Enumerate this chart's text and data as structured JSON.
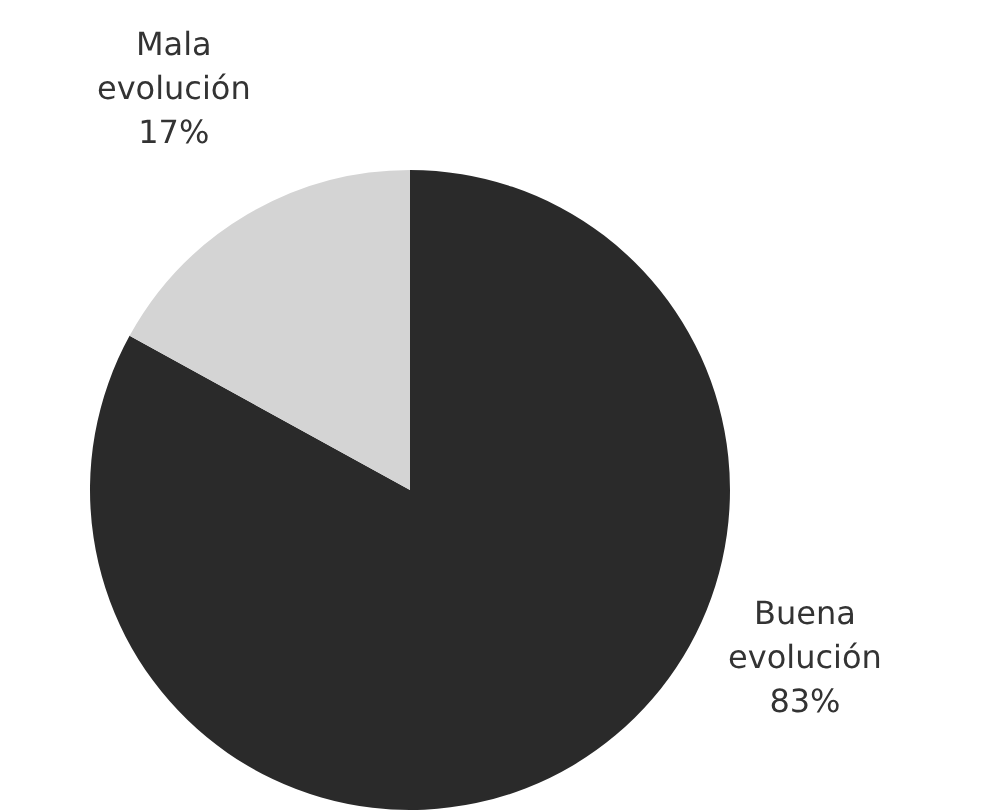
{
  "chart_data": {
    "type": "pie",
    "categories": [
      "Buena evolución",
      "Mala evolución"
    ],
    "values": [
      83,
      17
    ],
    "value_labels": [
      "83%",
      "17%"
    ],
    "colors": [
      "#2a2a2a",
      "#d4d4d4"
    ],
    "legend": false
  }
}
